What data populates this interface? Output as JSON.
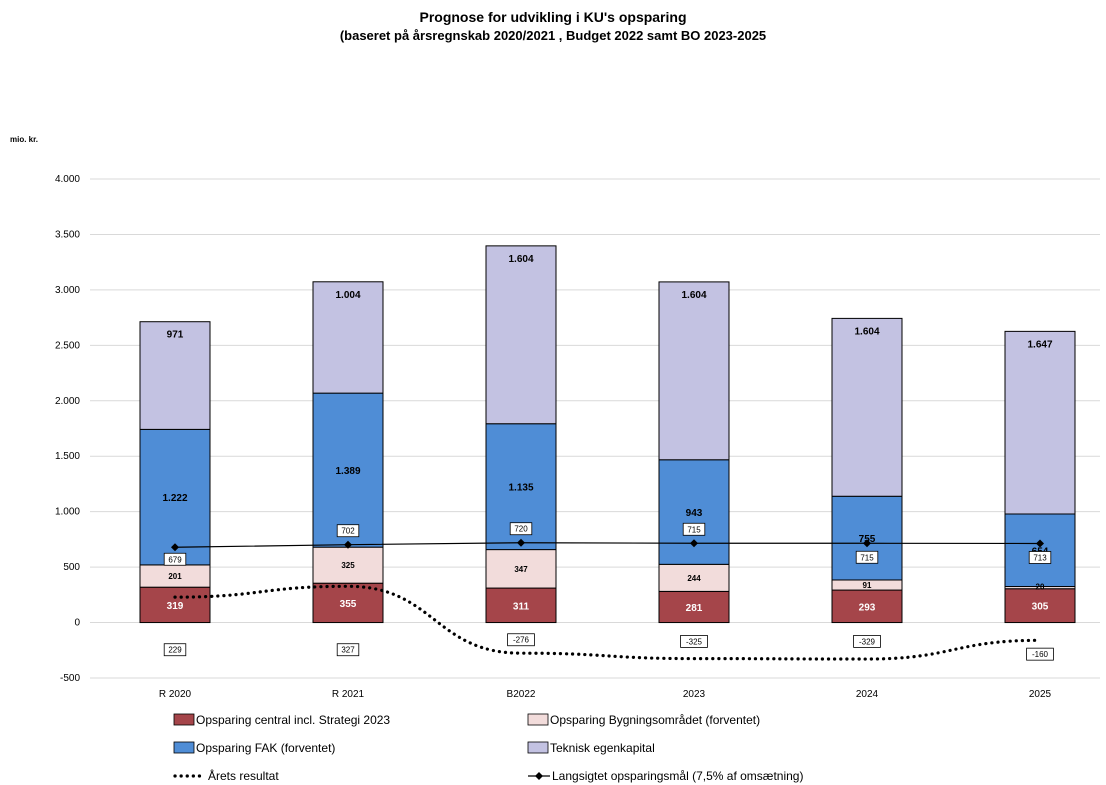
{
  "chart_data": {
    "type": "bar",
    "stacked": true,
    "title": "Prognose for udvikling i KU's opsparing",
    "subtitle": "(baseret på årsregnskab 2020/2021 , Budget 2022 samt BO 2023-2025",
    "ylabel": "mio. kr.",
    "ylim": [
      -500,
      4000
    ],
    "yticks": [
      -500,
      0,
      500,
      1000,
      1500,
      2000,
      2500,
      3000,
      3500,
      4000
    ],
    "ytick_labels": [
      "-500",
      "0",
      "500",
      "1.000",
      "1.500",
      "2.000",
      "2.500",
      "3.000",
      "3.500",
      "4.000"
    ],
    "grid": true,
    "legend_position": "bottom",
    "categories": [
      "R 2020",
      "R 2021",
      "B2022",
      "2023",
      "2024",
      "2025"
    ],
    "series": [
      {
        "name": "Opsparing central incl. Strategi 2023",
        "color": "#a5454a",
        "values": [
          319,
          355,
          311,
          281,
          293,
          305
        ],
        "labels": [
          "319",
          "355",
          "311",
          "281",
          "293",
          "305"
        ]
      },
      {
        "name": "Opsparing Bygningsområdet (forventet)",
        "color": "#f2dcdb",
        "values": [
          201,
          325,
          347,
          244,
          91,
          20
        ],
        "labels": [
          "201",
          "325",
          "347",
          "244",
          "91",
          "20"
        ]
      },
      {
        "name": "Opsparing FAK (forventet)",
        "color": "#4f8dd6",
        "values": [
          1222,
          1389,
          1135,
          943,
          755,
          654
        ],
        "labels": [
          "1.222",
          "1.389",
          "1.135",
          "943",
          "755",
          "654"
        ]
      },
      {
        "name": "Teknisk egenkapital",
        "color": "#c3c2e2",
        "values": [
          971,
          1004,
          1604,
          1604,
          1604,
          1647
        ],
        "labels": [
          "971",
          "1.004",
          "1.604",
          "1.604",
          "1.604",
          "1.647"
        ]
      }
    ],
    "lines": [
      {
        "name": "Årets resultat",
        "style": "dotted",
        "color": "#000000",
        "values": [
          229,
          327,
          -276,
          -325,
          -329,
          -160
        ],
        "labels": [
          "229",
          "327",
          "-276",
          "-325",
          "-329",
          "-160"
        ]
      },
      {
        "name": "Langsigtet opsparingsmål (7,5% af omsætning)",
        "style": "solid-diamond",
        "color": "#000000",
        "values": [
          679,
          702,
          720,
          715,
          715,
          713
        ],
        "labels": [
          "679",
          "702",
          "720",
          "715",
          "715",
          "713"
        ]
      }
    ]
  }
}
